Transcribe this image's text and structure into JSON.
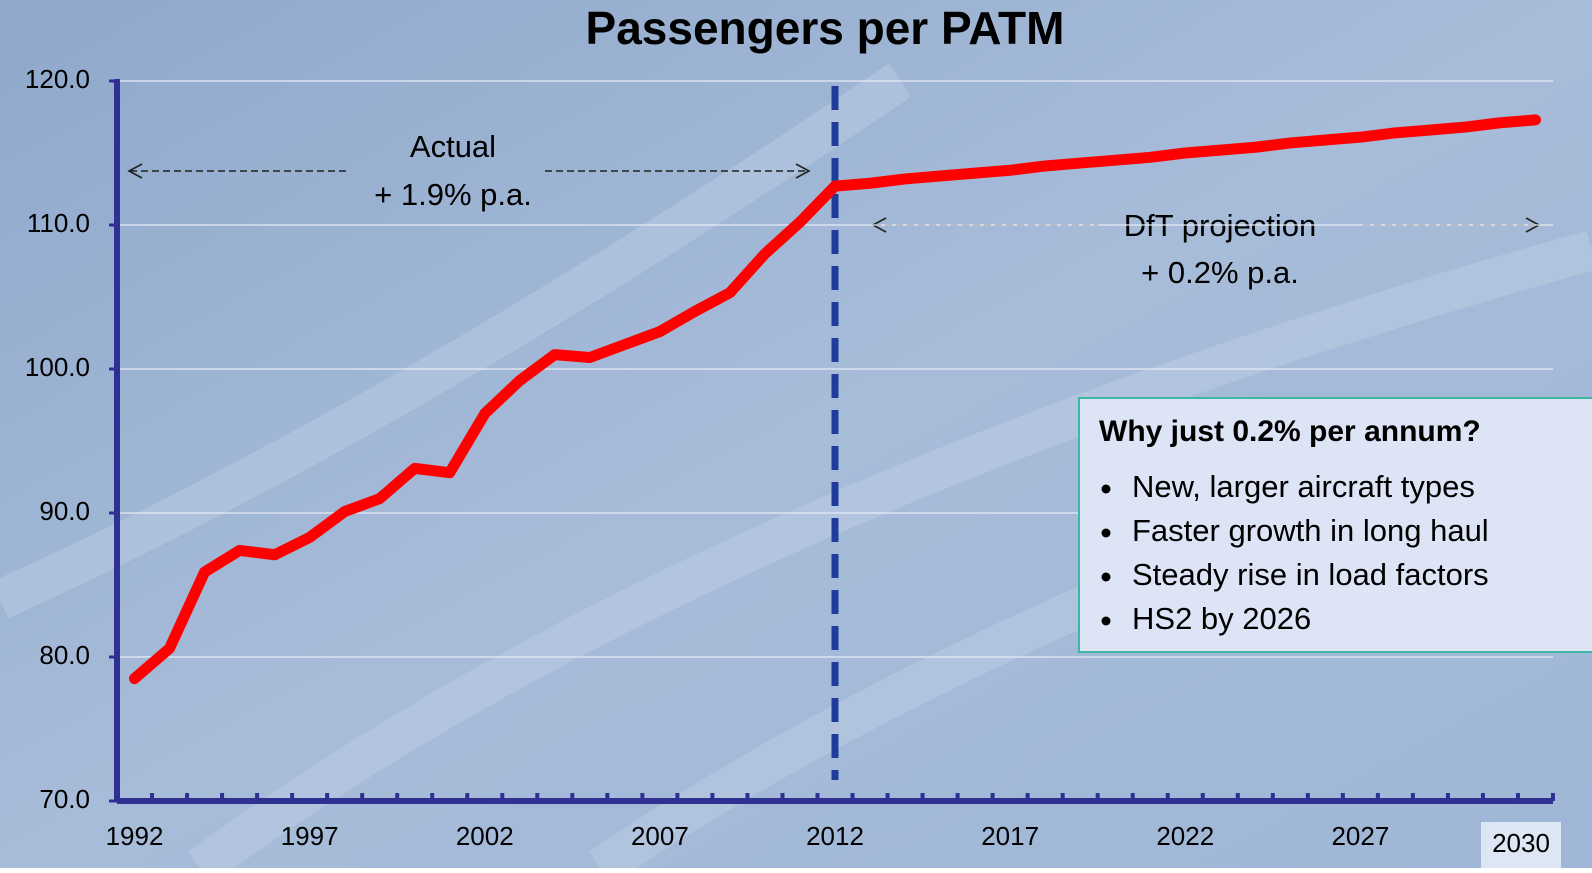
{
  "chart_data": {
    "type": "line",
    "title": "Passengers per PATM",
    "categories": [
      "1992",
      null,
      null,
      null,
      null,
      "1997",
      null,
      null,
      null,
      null,
      "2002",
      null,
      null,
      null,
      null,
      "2007",
      null,
      null,
      null,
      null,
      "2012",
      null,
      null,
      null,
      null,
      "2017",
      null,
      null,
      null,
      null,
      "2022",
      null,
      null,
      null,
      null,
      "2027",
      null,
      null,
      null,
      null,
      null
    ],
    "series": [
      {
        "name": "Passengers per PATM",
        "color": "#ff0000",
        "values": [
          78.5,
          80.6,
          85.9,
          87.4,
          87.1,
          88.3,
          90.1,
          91.0,
          93.1,
          92.8,
          96.9,
          99.2,
          101.0,
          100.8,
          101.7,
          102.6,
          104.0,
          105.3,
          108.0,
          110.2,
          112.7,
          112.9,
          113.2,
          113.4,
          113.6,
          113.8,
          114.1,
          114.3,
          114.5,
          114.7,
          115.0,
          115.2,
          115.4,
          115.7,
          115.9,
          116.1,
          116.4,
          116.6,
          116.8,
          117.1,
          117.3
        ]
      }
    ],
    "ylim": [
      70,
      120
    ],
    "yticks": [
      {
        "value": 70,
        "label": "70.0"
      },
      {
        "value": 80,
        "label": "80.0"
      },
      {
        "value": 90,
        "label": "90.0"
      },
      {
        "value": 100,
        "label": "100.0"
      },
      {
        "value": 110,
        "label": "110.0"
      },
      {
        "value": 120,
        "label": "120.0"
      }
    ],
    "grid": true,
    "axis_color": "#2e3192",
    "divider_category": "2012",
    "end_label": "2030",
    "annotations": {
      "actual": "Actual",
      "actual_rate": "+ 1.9% p.a.",
      "projection": "DfT projection",
      "projection_rate": "+ 0.2% p.a.",
      "box_title": "Why just 0.2% per annum?",
      "box_items": [
        "New, larger aircraft types",
        "Faster growth in long haul",
        "Steady rise in load factors",
        "HS2 by 2026"
      ]
    }
  }
}
